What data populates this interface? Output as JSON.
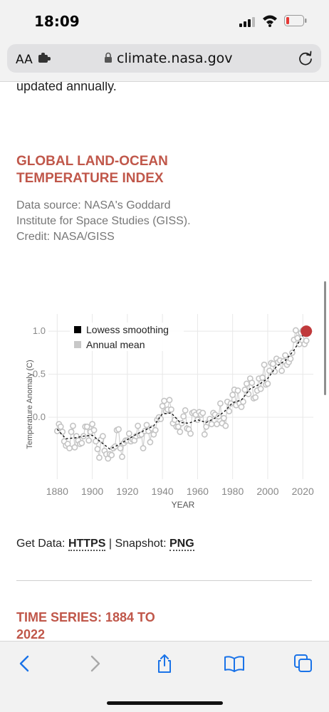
{
  "status_bar": {
    "time": "18:09"
  },
  "browser": {
    "text_size_label": "AA",
    "domain": "climate.nasa.gov"
  },
  "page": {
    "intro_tail": "updated annually.",
    "heading": "GLOBAL LAND-OCEAN TEMPERATURE INDEX",
    "source_text": "Data source: NASA's Goddard Institute for Space Studies (GISS). Credit: NASA/GISS",
    "get_data_label": "Get Data:",
    "https_link": "HTTPS",
    "separator": "|",
    "snapshot_label": "Snapshot:",
    "png_link": "PNG",
    "next_heading": "TIME SERIES: 1884 TO 2022"
  },
  "chart_data": {
    "type": "line",
    "title": "",
    "xlabel": "YEAR",
    "ylabel": "Temperature Anomaly (C)",
    "xlim": [
      1875,
      2026
    ],
    "ylim": [
      -0.72,
      1.2
    ],
    "x_ticks": [
      "1880",
      "1900",
      "1920",
      "1940",
      "1960",
      "1980",
      "2000",
      "2020"
    ],
    "y_ticks": [
      "1.0",
      "0.5",
      "0.0"
    ],
    "legend": [
      "Lowess smoothing",
      "Annual mean"
    ],
    "legend_position": "top-left",
    "grid": true,
    "series": [
      {
        "name": "Annual mean",
        "x": [
          1880,
          1881,
          1882,
          1883,
          1884,
          1885,
          1886,
          1887,
          1888,
          1889,
          1890,
          1891,
          1892,
          1893,
          1894,
          1895,
          1896,
          1897,
          1898,
          1899,
          1900,
          1901,
          1902,
          1903,
          1904,
          1905,
          1906,
          1907,
          1908,
          1909,
          1910,
          1911,
          1912,
          1913,
          1914,
          1915,
          1916,
          1917,
          1918,
          1919,
          1920,
          1921,
          1922,
          1923,
          1924,
          1925,
          1926,
          1927,
          1928,
          1929,
          1930,
          1931,
          1932,
          1933,
          1934,
          1935,
          1936,
          1937,
          1938,
          1939,
          1940,
          1941,
          1942,
          1943,
          1944,
          1945,
          1946,
          1947,
          1948,
          1949,
          1950,
          1951,
          1952,
          1953,
          1954,
          1955,
          1956,
          1957,
          1958,
          1959,
          1960,
          1961,
          1962,
          1963,
          1964,
          1965,
          1966,
          1967,
          1968,
          1969,
          1970,
          1971,
          1972,
          1973,
          1974,
          1975,
          1976,
          1977,
          1978,
          1979,
          1980,
          1981,
          1982,
          1983,
          1984,
          1985,
          1986,
          1987,
          1988,
          1989,
          1990,
          1991,
          1992,
          1993,
          1994,
          1995,
          1996,
          1997,
          1998,
          1999,
          2000,
          2001,
          2002,
          2003,
          2004,
          2005,
          2006,
          2007,
          2008,
          2009,
          2010,
          2011,
          2012,
          2013,
          2014,
          2015,
          2016,
          2017,
          2018,
          2019,
          2020,
          2021,
          2022
        ],
        "y": [
          -0.16,
          -0.08,
          -0.11,
          -0.17,
          -0.28,
          -0.33,
          -0.31,
          -0.36,
          -0.17,
          -0.1,
          -0.35,
          -0.22,
          -0.27,
          -0.31,
          -0.3,
          -0.22,
          -0.11,
          -0.11,
          -0.27,
          -0.17,
          -0.08,
          -0.15,
          -0.28,
          -0.37,
          -0.47,
          -0.26,
          -0.22,
          -0.39,
          -0.43,
          -0.48,
          -0.43,
          -0.44,
          -0.36,
          -0.34,
          -0.15,
          -0.14,
          -0.36,
          -0.46,
          -0.3,
          -0.27,
          -0.27,
          -0.19,
          -0.28,
          -0.26,
          -0.27,
          -0.22,
          -0.1,
          -0.21,
          -0.2,
          -0.36,
          -0.16,
          -0.09,
          -0.16,
          -0.29,
          -0.13,
          -0.2,
          -0.15,
          -0.03,
          -0.0,
          -0.02,
          0.13,
          0.19,
          0.07,
          0.09,
          0.2,
          0.09,
          -0.07,
          -0.03,
          -0.11,
          -0.11,
          -0.17,
          -0.07,
          0.01,
          0.08,
          -0.13,
          -0.14,
          -0.19,
          0.05,
          0.06,
          0.03,
          -0.03,
          0.06,
          0.03,
          0.05,
          -0.2,
          -0.11,
          -0.06,
          -0.02,
          -0.08,
          0.05,
          0.03,
          -0.08,
          0.01,
          0.16,
          -0.07,
          -0.01,
          -0.1,
          0.18,
          0.07,
          0.16,
          0.26,
          0.32,
          0.14,
          0.31,
          0.16,
          0.12,
          0.18,
          0.32,
          0.39,
          0.27,
          0.45,
          0.4,
          0.22,
          0.23,
          0.31,
          0.45,
          0.33,
          0.46,
          0.61,
          0.38,
          0.39,
          0.54,
          0.63,
          0.62,
          0.53,
          0.68,
          0.64,
          0.66,
          0.54,
          0.65,
          0.72,
          0.61,
          0.64,
          0.68,
          0.75,
          0.9,
          1.01,
          0.92,
          0.85,
          0.98,
          1.01,
          0.85,
          0.89
        ]
      },
      {
        "name": "Lowess smoothing",
        "x": [
          1880,
          1885,
          1890,
          1895,
          1900,
          1905,
          1910,
          1915,
          1920,
          1925,
          1930,
          1935,
          1940,
          1945,
          1950,
          1955,
          1960,
          1965,
          1970,
          1975,
          1980,
          1985,
          1990,
          1995,
          2000,
          2005,
          2010,
          2015,
          2020,
          2022
        ],
        "y": [
          -0.14,
          -0.25,
          -0.24,
          -0.22,
          -0.21,
          -0.29,
          -0.37,
          -0.32,
          -0.26,
          -0.2,
          -0.15,
          -0.1,
          0.04,
          0.05,
          -0.06,
          -0.07,
          -0.03,
          -0.06,
          -0.01,
          0.06,
          0.17,
          0.2,
          0.33,
          0.38,
          0.45,
          0.59,
          0.66,
          0.78,
          0.95,
          0.98
        ]
      }
    ],
    "highlight": {
      "year": 2022,
      "value": 1.0
    }
  }
}
